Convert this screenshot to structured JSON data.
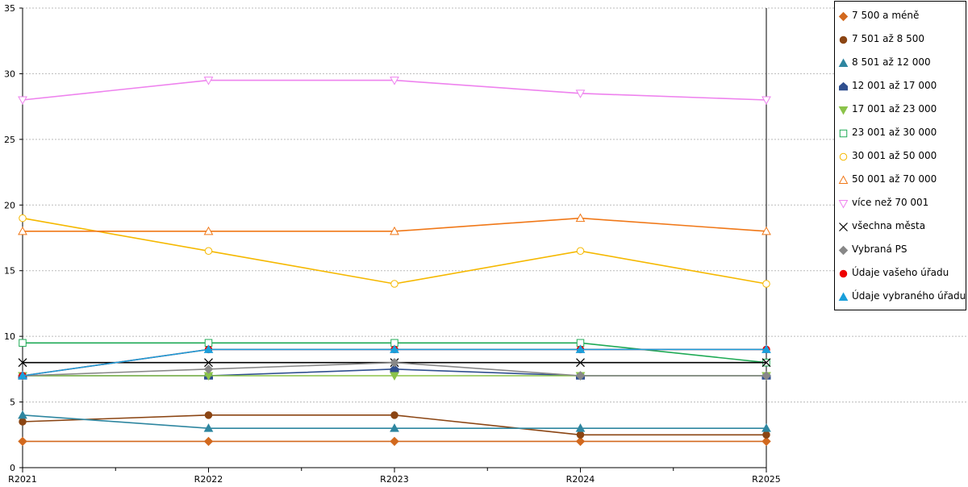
{
  "chart_data": {
    "type": "line",
    "categories": [
      "R2021",
      "R2022",
      "R2023",
      "R2024",
      "R2025"
    ],
    "ylim": [
      0,
      35
    ],
    "yticks": [
      0,
      5,
      10,
      15,
      20,
      25,
      30,
      35
    ],
    "grid": true,
    "legend_position": "right",
    "series": [
      {
        "name": "7 500 a méně",
        "values": [
          2,
          2,
          2,
          2,
          2
        ],
        "color": "#d2691e",
        "marker": "diamond",
        "filled": true
      },
      {
        "name": "7 501 až 8 500",
        "values": [
          3.5,
          4,
          4,
          2.5,
          2.5
        ],
        "color": "#8b4513",
        "marker": "circle",
        "filled": true
      },
      {
        "name": "8 501 až 12 000",
        "values": [
          4,
          3,
          3,
          3,
          3
        ],
        "color": "#2e86a0",
        "marker": "triangle-up",
        "filled": true
      },
      {
        "name": "12 001 až 17 000",
        "values": [
          7,
          7,
          7.5,
          7,
          7
        ],
        "color": "#2f4f8f",
        "marker": "house",
        "filled": true
      },
      {
        "name": "17 001 až 23 000",
        "values": [
          7,
          7,
          7,
          7,
          7
        ],
        "color": "#8bc34a",
        "marker": "triangle-down",
        "filled": true
      },
      {
        "name": "23 001 až 30 000",
        "values": [
          9.5,
          9.5,
          9.5,
          9.5,
          8
        ],
        "color": "#1faa55",
        "marker": "square",
        "filled": false
      },
      {
        "name": "30 001 až 50 000",
        "values": [
          19,
          16.5,
          14,
          16.5,
          14
        ],
        "color": "#f5b800",
        "marker": "circle",
        "filled": false
      },
      {
        "name": "50 001 až 70 000",
        "values": [
          18,
          18,
          18,
          19,
          18
        ],
        "color": "#f07818",
        "marker": "triangle-up",
        "filled": false
      },
      {
        "name": "více než 70 001",
        "values": [
          28,
          29.5,
          29.5,
          28.5,
          28
        ],
        "color": "#ee82ee",
        "marker": "triangle-down",
        "filled": false
      },
      {
        "name": "všechna města",
        "values": [
          8,
          8,
          8,
          8,
          8
        ],
        "color": "#000000",
        "marker": "x",
        "filled": false
      },
      {
        "name": "Vybraná PS",
        "values": [
          7,
          7.5,
          8,
          7,
          7
        ],
        "color": "#888888",
        "marker": "diamond",
        "filled": true
      },
      {
        "name": "Údaje vašeho úřadu",
        "values": [
          7,
          9,
          9,
          9,
          9
        ],
        "color": "#ee0000",
        "marker": "circle",
        "filled": true
      },
      {
        "name": "Údaje vybraného úřadu",
        "values": [
          7,
          9,
          9,
          9,
          9
        ],
        "color": "#1a9fdb",
        "marker": "triangle-up",
        "filled": true
      }
    ]
  }
}
